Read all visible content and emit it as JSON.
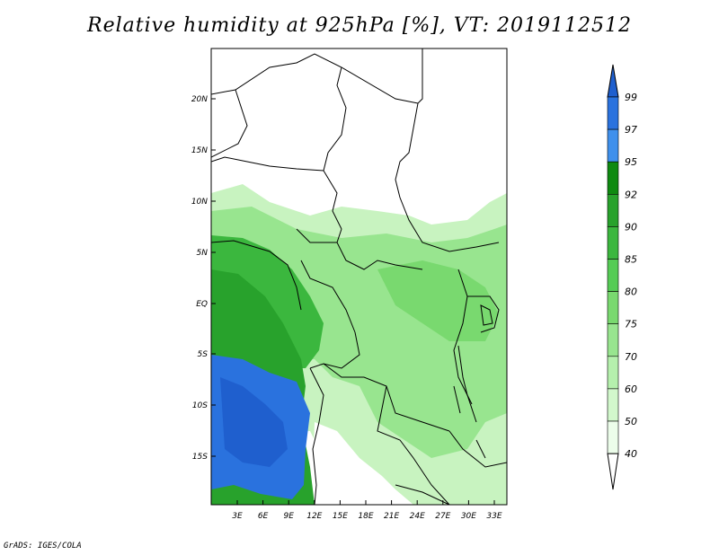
{
  "title": "Relative humidity at 925hPa [%], VT: 2019112512",
  "footer": "GrADS: IGES/COLA",
  "map": {
    "lon_ticks": [
      "3E",
      "6E",
      "9E",
      "12E",
      "15E",
      "18E",
      "21E",
      "24E",
      "27E",
      "30E",
      "33E"
    ],
    "lat_ticks": [
      "20N",
      "15N",
      "10N",
      "5N",
      "EQ",
      "5S",
      "10S",
      "15S"
    ]
  },
  "colorbar": {
    "labels": [
      "99",
      "97",
      "95",
      "92",
      "90",
      "85",
      "80",
      "75",
      "70",
      "60",
      "50",
      "40"
    ],
    "colors": [
      "#1f5fce",
      "#2a72de",
      "#3f90ec",
      "#0e8a10",
      "#28a22c",
      "#3bb73e",
      "#55cc55",
      "#79d96f",
      "#98e58f",
      "#b5f0ad",
      "#d2f8cc",
      "#ecfdea",
      "#ffffff"
    ]
  }
}
